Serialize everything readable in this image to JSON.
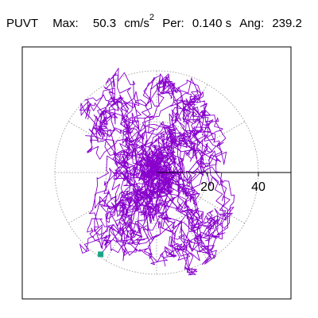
{
  "header": {
    "station": "PUVT",
    "max_label": "Max:",
    "max_value": "50.3",
    "max_unit": "cm/s",
    "max_exp": "2",
    "per_label": "Per:",
    "per_value": "0.140 s",
    "ang_label": "Ang:",
    "ang_value": "239.2"
  },
  "chart_data": {
    "type": "polar-particle-motion",
    "ring_ticks": [
      20,
      40
    ],
    "ring_tick_labels": [
      "20",
      "40"
    ],
    "r_max": 40,
    "trace_color": "#8800cc",
    "grid_color": "#909090",
    "axis_color": "#000000",
    "end_marker_color": "#1aa385",
    "end_point": [
      -27.5,
      -40.2
    ]
  }
}
